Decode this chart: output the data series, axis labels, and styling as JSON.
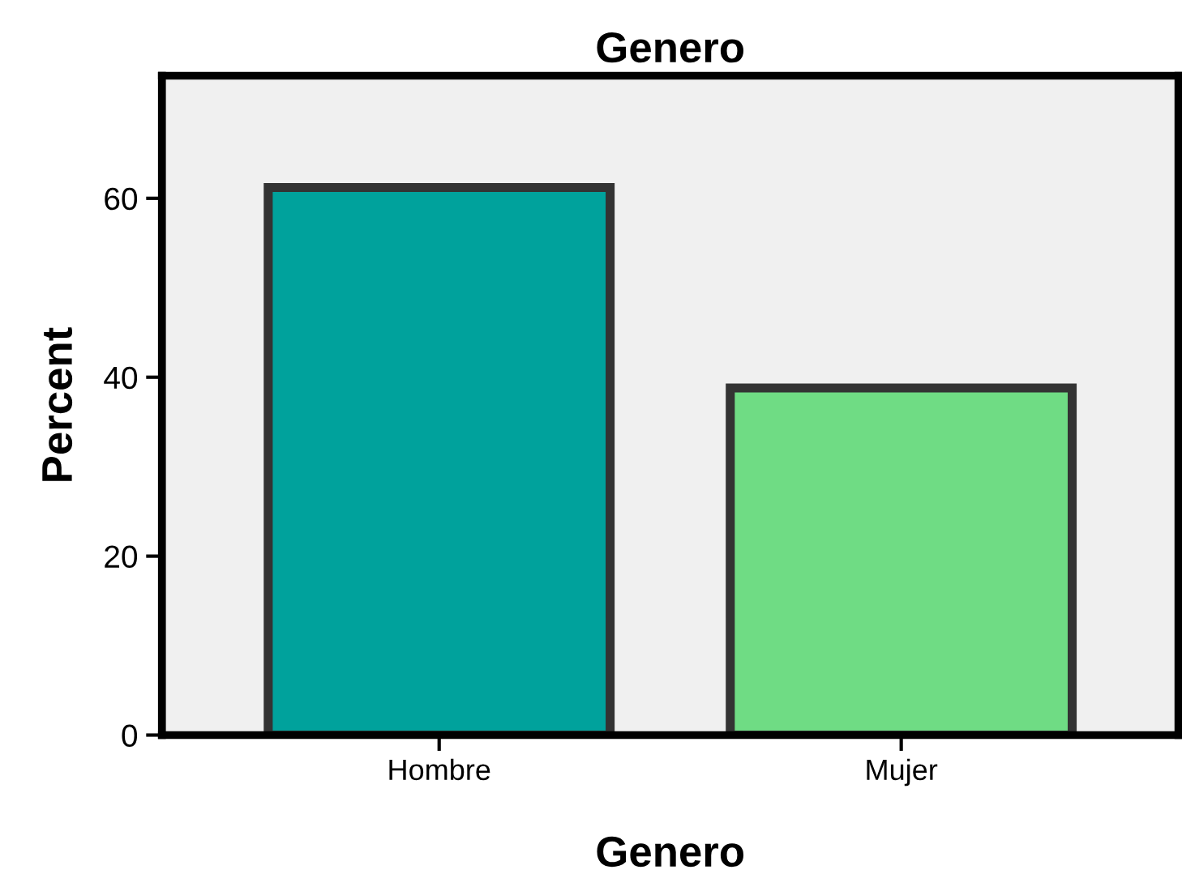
{
  "chart_data": {
    "type": "bar",
    "title": "Genero",
    "xlabel": "Genero",
    "ylabel": "Percent",
    "categories": [
      "Hombre",
      "Mujer"
    ],
    "values": [
      61.2,
      38.8
    ],
    "colors": [
      "#00a29c",
      "#6fdc84"
    ],
    "ylim": [
      0,
      73.7
    ],
    "yticks": [
      0,
      20,
      40,
      60
    ],
    "grid": false,
    "legend": false
  }
}
